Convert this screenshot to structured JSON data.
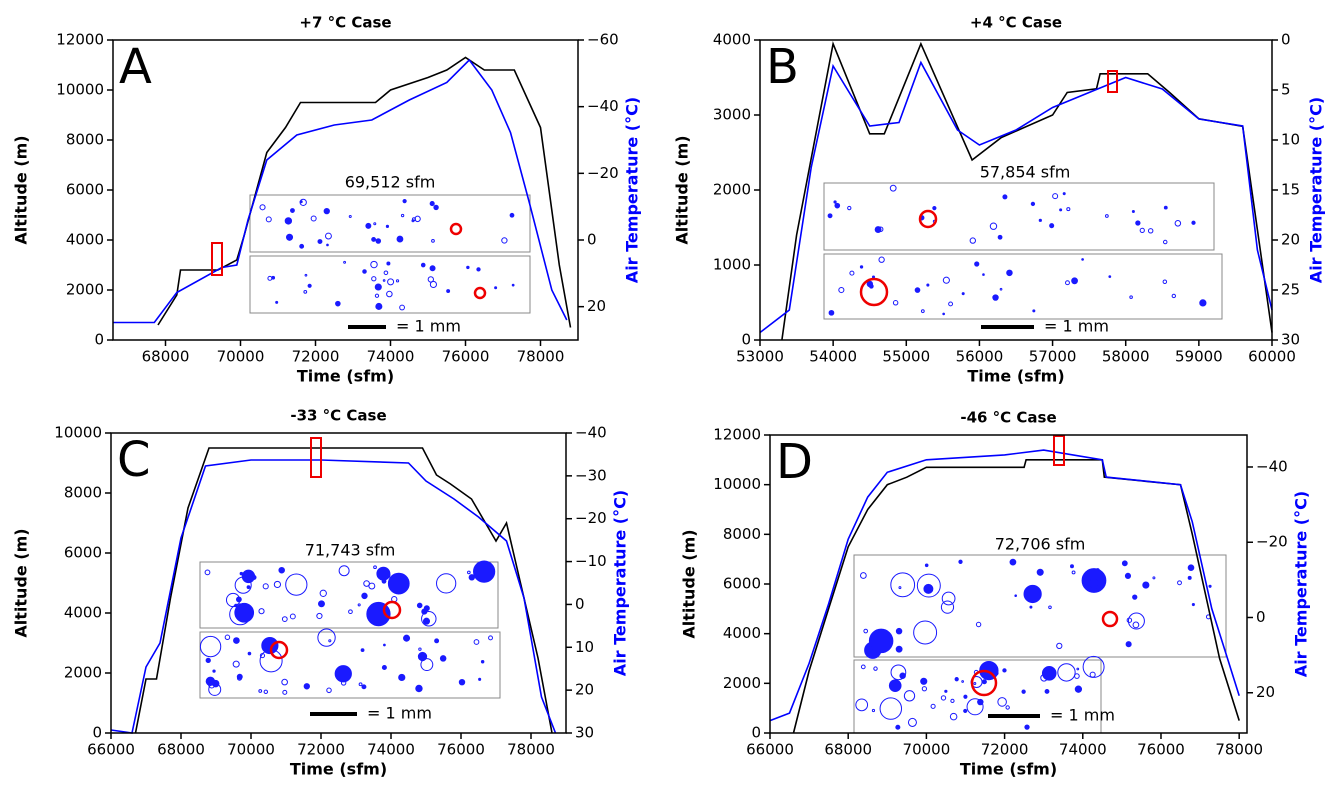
{
  "chart_data": [
    {
      "type": "line",
      "title": "+7 °C Case",
      "panel_label": "A",
      "xlabel": "Time (sfm)",
      "ylabel": "Altitude (m)",
      "y2label": "Air Temperature (°C)",
      "xlim": [
        66600,
        79000
      ],
      "xticks": [
        68000,
        70000,
        72000,
        74000,
        76000,
        78000
      ],
      "ylim": [
        0,
        12000
      ],
      "yticks": [
        0,
        2000,
        4000,
        6000,
        8000,
        10000,
        12000
      ],
      "y2lim": [
        30,
        -60
      ],
      "y2ticks": [
        {
          "value": -60,
          "label": "−60"
        },
        {
          "value": -40,
          "label": "−40"
        },
        {
          "value": -20,
          "label": "−20"
        },
        0,
        20
      ],
      "series": [
        {
          "color": "#000000",
          "x": [
            67800,
            68300,
            68400,
            69400,
            69900,
            70100,
            70700,
            71200,
            71600,
            73600,
            74000,
            75000,
            75500,
            76000,
            76500,
            77300,
            78000,
            78500,
            78800
          ],
          "values": [
            600,
            1800,
            2800,
            2800,
            3200,
            4200,
            7500,
            8500,
            9500,
            9500,
            10000,
            10500,
            10800,
            11300,
            10800,
            10800,
            8500,
            3000,
            500
          ]
        },
        {
          "color": "#0000ff",
          "axis": "y2",
          "x": [
            66600,
            67700,
            68300,
            69500,
            69900,
            70200,
            70700,
            71500,
            72500,
            73500,
            74500,
            75500,
            76100,
            76700,
            77200,
            77700,
            78300,
            78700
          ],
          "values": [
            24.75,
            24.75,
            15.75,
            8.25,
            7.5,
            -6,
            -24,
            -31.5,
            -34.5,
            -36,
            -42,
            -47.25,
            -54,
            -45,
            -32.25,
            -11.25,
            15,
            24
          ]
        }
      ],
      "inset_label": "69,512 sfm",
      "scale_label": "= 1 mm"
    },
    {
      "type": "line",
      "title": "+4 °C Case",
      "panel_label": "B",
      "xlabel": "Time (sfm)",
      "ylabel": "Altitude (m)",
      "y2label": "Air Temperature (°C)",
      "xlim": [
        53000,
        60000
      ],
      "xticks": [
        53000,
        54000,
        55000,
        56000,
        57000,
        58000,
        59000,
        60000
      ],
      "ylim": [
        0,
        4000
      ],
      "yticks": [
        0,
        1000,
        2000,
        3000,
        4000
      ],
      "y2lim": [
        30,
        0
      ],
      "y2ticks": [
        0,
        5,
        10,
        15,
        20,
        25,
        30
      ],
      "series": [
        {
          "color": "#000000",
          "x": [
            53300,
            53500,
            54000,
            54500,
            54700,
            55200,
            55900,
            56300,
            57000,
            57200,
            57600,
            57650,
            58300,
            58600,
            59000,
            59600,
            60000
          ],
          "values": [
            0,
            1400,
            3950,
            2750,
            2750,
            3950,
            2400,
            2700,
            3000,
            3300,
            3350,
            3550,
            3550,
            3300,
            2950,
            2850,
            100
          ]
        },
        {
          "color": "#0000ff",
          "axis": "y2",
          "x": [
            53000,
            53400,
            53700,
            54000,
            54500,
            54900,
            55200,
            55700,
            56000,
            56500,
            57000,
            57500,
            58000,
            58500,
            59000,
            59600,
            59800,
            60000
          ],
          "values": [
            29.25,
            27,
            12.75,
            2.6,
            8.6,
            8.25,
            2.25,
            9,
            10.5,
            9,
            6.75,
            5.25,
            3.75,
            4.9,
            7.9,
            8.6,
            21,
            27
          ]
        }
      ],
      "inset_label": "57,854 sfm",
      "scale_label": "= 1 mm"
    },
    {
      "type": "line",
      "title": "-33 °C Case",
      "panel_label": "C",
      "xlabel": "Time (sfm)",
      "ylabel": "Altitude (m)",
      "y2label": "Air Temperature (°C)",
      "xlim": [
        66000,
        79000
      ],
      "xticks": [
        66000,
        68000,
        70000,
        72000,
        74000,
        76000,
        78000
      ],
      "ylim": [
        0,
        10000
      ],
      "yticks": [
        0,
        2000,
        4000,
        6000,
        8000,
        10000
      ],
      "y2lim": [
        30,
        -40
      ],
      "y2ticks": [
        {
          "value": -40,
          "label": "−40"
        },
        {
          "value": -30,
          "label": "−30"
        },
        {
          "value": -20,
          "label": "−20"
        },
        {
          "value": -10,
          "label": "−10"
        },
        0,
        10,
        20,
        30
      ],
      "series": [
        {
          "color": "#000000",
          "x": [
            66700,
            67000,
            67300,
            67700,
            68200,
            68800,
            74900,
            75300,
            75700,
            76300,
            76700,
            77000,
            77300,
            77700,
            78200,
            78600
          ],
          "values": [
            0,
            1800,
            1800,
            4500,
            7500,
            9500,
            9500,
            8600,
            8300,
            7800,
            7000,
            6400,
            7000,
            5000,
            2500,
            0
          ]
        },
        {
          "color": "#0000ff",
          "axis": "y2",
          "x": [
            66000,
            66600,
            67000,
            67400,
            68000,
            68700,
            70000,
            72000,
            74500,
            75000,
            75800,
            76500,
            77300,
            77800,
            78300,
            78700
          ],
          "values": [
            29.3,
            30,
            14.6,
            9,
            -15.5,
            -32.3,
            -33.7,
            -33.7,
            -33,
            -28.8,
            -24.6,
            -20.4,
            -14.8,
            -1.5,
            21.6,
            30
          ]
        }
      ],
      "inset_label": "71,743 sfm",
      "scale_label": "= 1 mm"
    },
    {
      "type": "line",
      "title": "-46 °C Case",
      "panel_label": "D",
      "xlabel": "Time (sfm)",
      "ylabel": "Altitude (m)",
      "y2label": "Air Temperature (°C)",
      "xlim": [
        66000,
        78200
      ],
      "xticks": [
        66000,
        68000,
        70000,
        72000,
        74000,
        76000,
        78000
      ],
      "ylim": [
        0,
        12000
      ],
      "yticks": [
        0,
        2000,
        4000,
        6000,
        8000,
        10000,
        12000
      ],
      "y2lim": [
        30.7,
        -48.5
      ],
      "y2ticks": [
        {
          "value": -40,
          "label": "−40"
        },
        {
          "value": -20,
          "label": "−20"
        },
        0,
        20
      ],
      "series": [
        {
          "color": "#000000",
          "x": [
            66600,
            67000,
            67500,
            68000,
            68500,
            69000,
            69500,
            70000,
            72500,
            72550,
            74500,
            74550,
            76500,
            76800,
            77500,
            78000
          ],
          "values": [
            0,
            2500,
            5000,
            7500,
            9000,
            10000,
            10300,
            10700,
            10700,
            11000,
            11000,
            10300,
            10000,
            8000,
            3000,
            500
          ]
        },
        {
          "color": "#0000ff",
          "axis": "y2",
          "x": [
            66000,
            66500,
            67000,
            67500,
            68000,
            68500,
            69000,
            70000,
            72000,
            73000,
            74500,
            74600,
            76500,
            76800,
            77300,
            77700,
            78000
          ],
          "values": [
            27.4,
            25.4,
            12.2,
            -3.6,
            -20.8,
            -32,
            -38.6,
            -41.9,
            -43.2,
            -44.5,
            -41.9,
            -37.3,
            -35.3,
            -25.4,
            -2.3,
            10.9,
            20.8
          ]
        }
      ],
      "inset_label": "72,706 sfm",
      "scale_label": "= 1 mm"
    }
  ]
}
